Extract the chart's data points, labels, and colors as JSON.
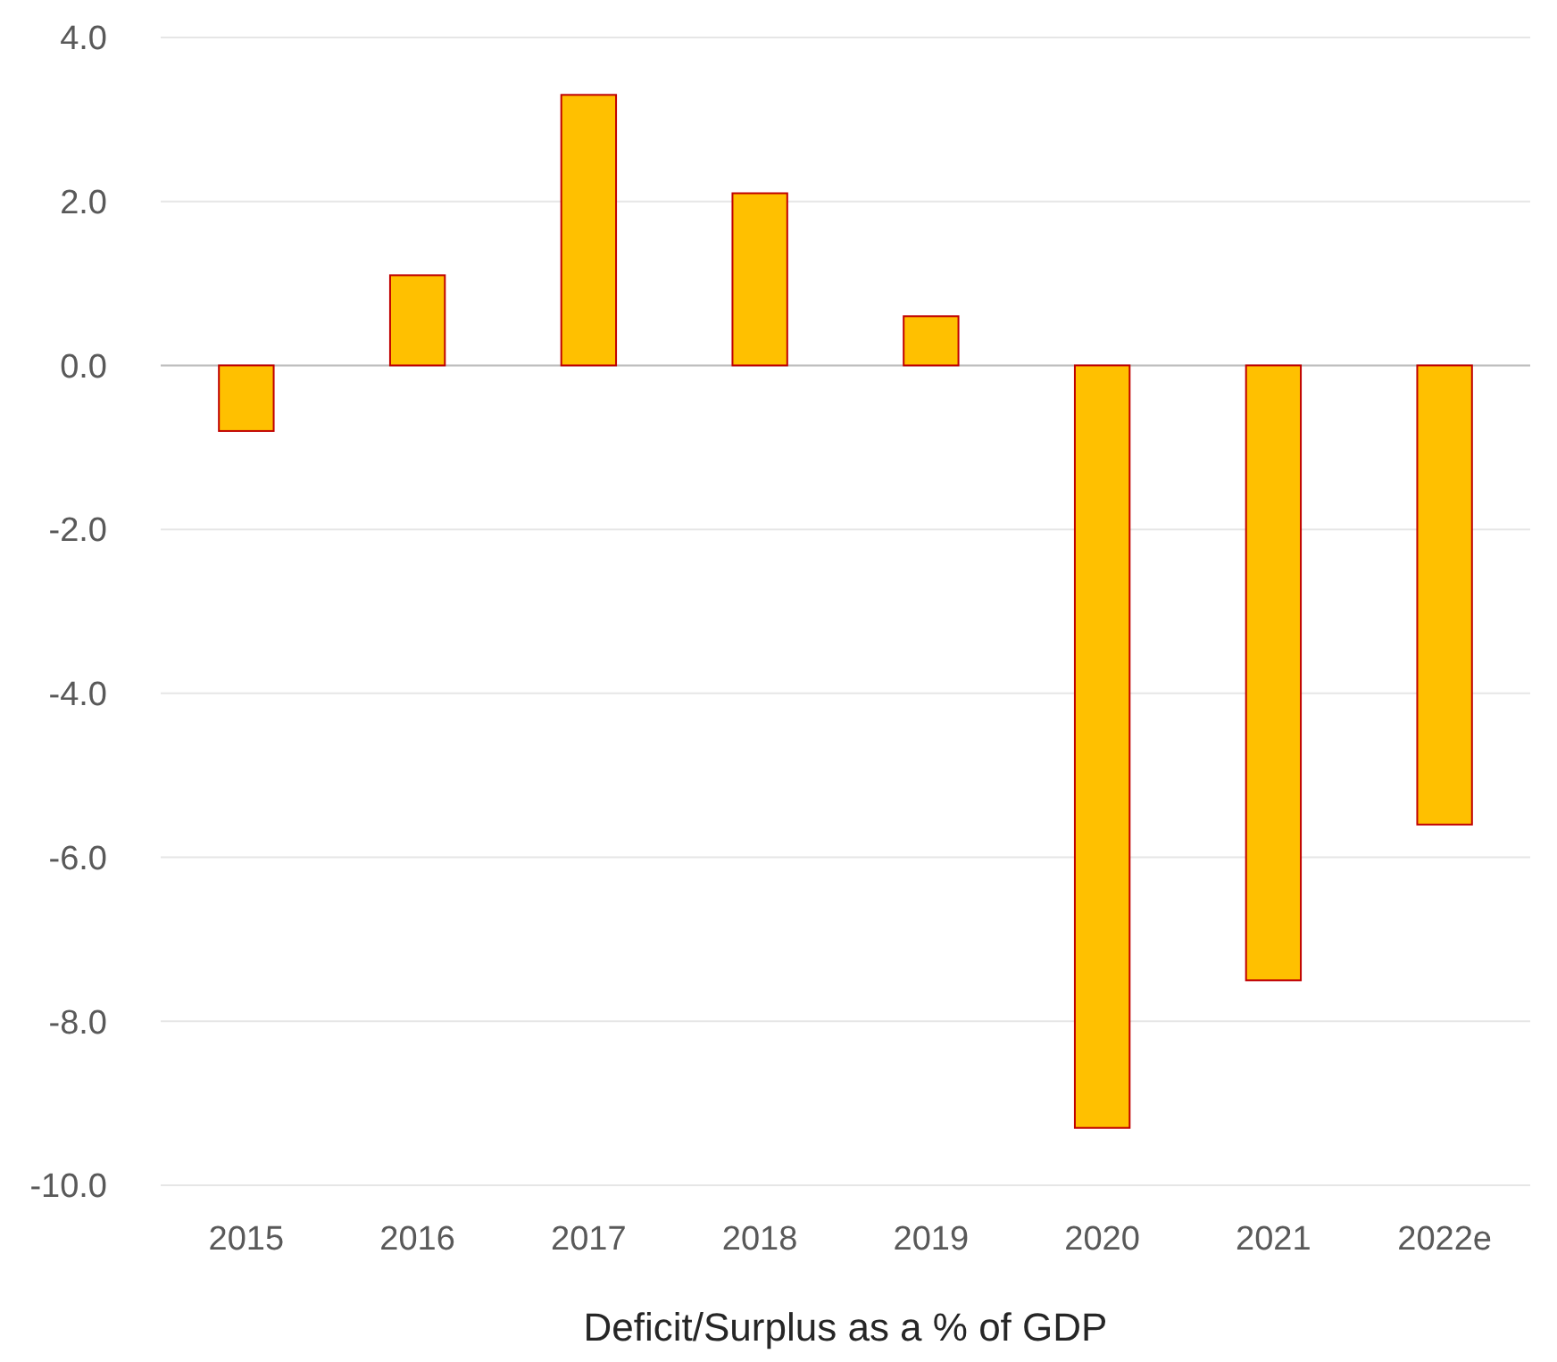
{
  "chart_data": {
    "type": "bar",
    "xlabel": "Deficit/Surplus as a % of GDP",
    "categories": [
      "2015",
      "2016",
      "2017",
      "2018",
      "2019",
      "2020",
      "2021",
      "2022e"
    ],
    "values": [
      -0.8,
      1.1,
      3.3,
      2.1,
      0.6,
      -9.3,
      -7.5,
      -5.6
    ],
    "colors": [
      "#ffc000",
      "#ffc000",
      "#ffc000",
      "#ffc000",
      "#ffc000",
      "#ffc000",
      "#ffc000",
      "#ffc000"
    ],
    "ylim": [
      -10,
      4
    ],
    "yticks": [
      {
        "value": -10,
        "label": "-10.0"
      },
      {
        "value": -8,
        "label": "-8.0"
      },
      {
        "value": -6,
        "label": "-6.0"
      },
      {
        "value": -4,
        "label": "-4.0"
      },
      {
        "value": -2,
        "label": "-2.0"
      },
      {
        "value": 0,
        "label": "0.0"
      },
      {
        "value": 2,
        "label": "2.0"
      },
      {
        "value": 4,
        "label": "4.0"
      }
    ],
    "grid": "y"
  }
}
